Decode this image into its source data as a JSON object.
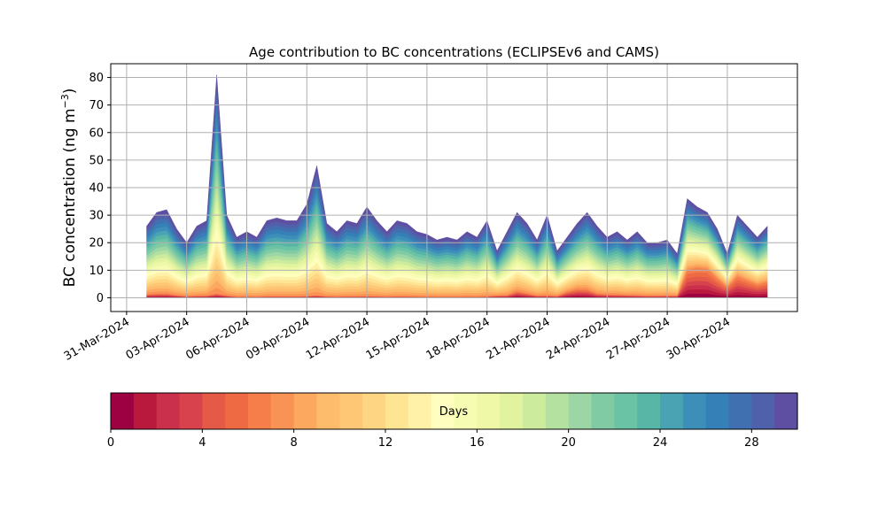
{
  "chart_data": {
    "type": "area",
    "subtype": "stacked-area by age bin",
    "title": "Age contribution to BC concentrations (ECLIPSEv6 and CAMS)",
    "ylabel": "BC concentration (ng m−3)",
    "ylabel_main": "BC concentration (ng m",
    "ylabel_sup": "−3",
    "ylabel_close": ")",
    "xlabel": "",
    "ylim": [
      -5,
      85
    ],
    "yticks": [
      0,
      10,
      20,
      30,
      40,
      50,
      60,
      70,
      80
    ],
    "xlim_dates": [
      "2024-03-30T05:00",
      "2024-05-03T12:00"
    ],
    "xticks": [
      {
        "date": "2024-03-31",
        "label": "31-Mar-2024"
      },
      {
        "date": "2024-04-03",
        "label": "03-Apr-2024"
      },
      {
        "date": "2024-04-06",
        "label": "06-Apr-2024"
      },
      {
        "date": "2024-04-09",
        "label": "09-Apr-2024"
      },
      {
        "date": "2024-04-12",
        "label": "12-Apr-2024"
      },
      {
        "date": "2024-04-15",
        "label": "15-Apr-2024"
      },
      {
        "date": "2024-04-18",
        "label": "18-Apr-2024"
      },
      {
        "date": "2024-04-21",
        "label": "21-Apr-2024"
      },
      {
        "date": "2024-04-24",
        "label": "24-Apr-2024"
      },
      {
        "date": "2024-04-27",
        "label": "27-Apr-2024"
      },
      {
        "date": "2024-04-30",
        "label": "30-Apr-2024"
      }
    ],
    "grid": true,
    "x_dates": [
      "2024-04-01T00:00",
      "2024-04-01T12:00",
      "2024-04-02T00:00",
      "2024-04-02T12:00",
      "2024-04-03T00:00",
      "2024-04-03T12:00",
      "2024-04-04T00:00",
      "2024-04-04T12:00",
      "2024-04-05T00:00",
      "2024-04-05T12:00",
      "2024-04-06T00:00",
      "2024-04-06T12:00",
      "2024-04-07T00:00",
      "2024-04-07T12:00",
      "2024-04-08T00:00",
      "2024-04-08T12:00",
      "2024-04-09T00:00",
      "2024-04-09T12:00",
      "2024-04-10T00:00",
      "2024-04-10T12:00",
      "2024-04-11T00:00",
      "2024-04-11T12:00",
      "2024-04-12T00:00",
      "2024-04-12T12:00",
      "2024-04-13T00:00",
      "2024-04-13T12:00",
      "2024-04-14T00:00",
      "2024-04-14T12:00",
      "2024-04-15T00:00",
      "2024-04-15T12:00",
      "2024-04-16T00:00",
      "2024-04-16T12:00",
      "2024-04-17T00:00",
      "2024-04-17T12:00",
      "2024-04-18T00:00",
      "2024-04-18T12:00",
      "2024-04-19T00:00",
      "2024-04-19T12:00",
      "2024-04-20T00:00",
      "2024-04-20T12:00",
      "2024-04-21T00:00",
      "2024-04-21T12:00",
      "2024-04-22T00:00",
      "2024-04-22T12:00",
      "2024-04-23T00:00",
      "2024-04-23T12:00",
      "2024-04-24T00:00",
      "2024-04-24T12:00",
      "2024-04-25T00:00",
      "2024-04-25T12:00",
      "2024-04-26T00:00",
      "2024-04-26T12:00",
      "2024-04-27T00:00",
      "2024-04-27T12:00",
      "2024-04-28T00:00",
      "2024-04-28T12:00",
      "2024-04-29T00:00",
      "2024-04-29T12:00",
      "2024-04-30T00:00",
      "2024-04-30T12:00",
      "2024-05-01T00:00",
      "2024-05-01T12:00",
      "2024-05-02T00:00"
    ],
    "total": [
      26,
      31,
      32,
      25,
      20,
      26,
      28,
      81,
      30,
      22,
      24,
      22,
      28,
      29,
      28,
      28,
      34,
      48,
      27,
      24,
      28,
      27,
      33,
      28,
      24,
      28,
      27,
      24,
      23,
      21,
      22,
      21,
      24,
      22,
      28,
      17,
      24,
      31,
      27,
      21,
      30,
      17,
      22,
      27,
      31,
      26,
      22,
      24,
      21,
      24,
      20,
      20,
      21,
      16,
      36,
      33,
      31,
      25,
      16,
      30,
      26,
      22,
      26
    ],
    "young_fraction": [
      0.05,
      0.05,
      0.05,
      0.04,
      0.03,
      0.03,
      0.03,
      0.02,
      0.03,
      0.02,
      0.02,
      0.02,
      0.02,
      0.02,
      0.02,
      0.02,
      0.02,
      0.02,
      0.02,
      0.02,
      0.02,
      0.02,
      0.02,
      0.02,
      0.02,
      0.02,
      0.02,
      0.02,
      0.02,
      0.02,
      0.02,
      0.02,
      0.02,
      0.02,
      0.02,
      0.05,
      0.04,
      0.08,
      0.06,
      0.04,
      0.03,
      0.04,
      0.1,
      0.12,
      0.1,
      0.06,
      0.06,
      0.05,
      0.05,
      0.04,
      0.04,
      0.04,
      0.04,
      0.05,
      0.28,
      0.33,
      0.34,
      0.28,
      0.25,
      0.26,
      0.24,
      0.22,
      0.22
    ],
    "colorbar": {
      "label": "Days",
      "min": 0,
      "max": 30,
      "ticks": [
        0,
        4,
        8,
        12,
        16,
        20,
        24,
        28
      ],
      "colors": [
        "#9e0142",
        "#b8193d",
        "#ca2f4b",
        "#d8424d",
        "#e45a47",
        "#ed6a43",
        "#f67e4b",
        "#f99355",
        "#fca85e",
        "#fdbb6c",
        "#fdc775",
        "#fed683",
        "#fee593",
        "#fff1a8",
        "#fffebe",
        "#f7fcb3",
        "#eef8a7",
        "#e1f39e",
        "#cdeb9c",
        "#b4e1a0",
        "#9bd6a4",
        "#80cba4",
        "#6bc3a5",
        "#58b6a7",
        "#4aa3b2",
        "#3d8fba",
        "#3581b7",
        "#4170b0",
        "#5061ab",
        "#5e4fa2"
      ]
    }
  }
}
